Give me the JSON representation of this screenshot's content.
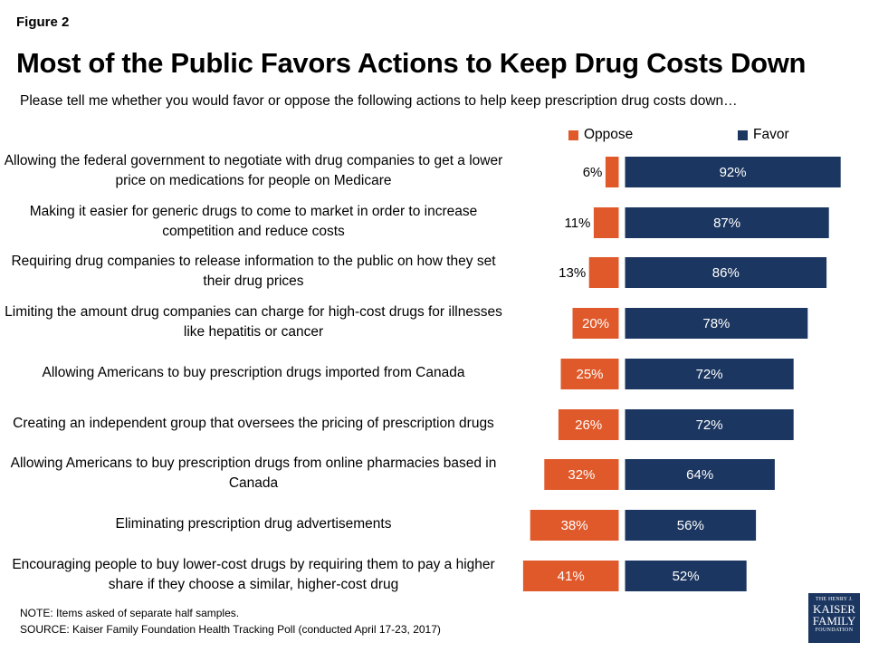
{
  "figure_label": "Figure 2",
  "notes": {
    "note": "NOTE: Items asked of separate half samples.",
    "source": "SOURCE: Kaiser Family Foundation Health Tracking Poll (conducted April 17-23, 2017)"
  },
  "logo": {
    "line1": "THE HENRY J.",
    "line2": "KAISER",
    "line3": "FAMILY",
    "line4": "FOUNDATION"
  },
  "colors": {
    "oppose": "#e0592a",
    "favor": "#1b3660",
    "bar_border": "#ffffff"
  },
  "chart_data": {
    "type": "bar",
    "orientation": "horizontal-diverging",
    "title": "Most of the Public Favors Actions to Keep Drug Costs Down",
    "subtitle": "Please tell me whether you would favor or oppose the following actions to help keep prescription drug costs down…",
    "legend_position": "top-right",
    "categories": [
      "Allowing the federal government to negotiate with drug companies to get a lower price on medications for people on Medicare",
      "Making it easier for generic drugs to come to market in order to increase competition and reduce costs",
      "Requiring drug companies to release information to the public on how they set their drug prices",
      "Limiting the amount drug companies can charge for high-cost drugs for illnesses like hepatitis or cancer",
      "Allowing Americans to buy prescription drugs imported from Canada",
      "Creating an independent group that oversees the pricing of prescription drugs",
      "Allowing Americans to buy prescription drugs from online pharmacies based in Canada",
      "Eliminating prescription drug advertisements",
      "Encouraging people to buy lower-cost drugs by requiring them to pay a higher share if they choose a similar, higher-cost drug"
    ],
    "series": [
      {
        "name": "Oppose",
        "values": [
          6,
          11,
          13,
          20,
          25,
          26,
          32,
          38,
          41
        ],
        "labels": [
          "6%",
          "11%",
          "13%",
          "20%",
          "25%",
          "26%",
          "32%",
          "38%",
          "41%"
        ]
      },
      {
        "name": "Favor",
        "values": [
          92,
          87,
          86,
          78,
          72,
          72,
          64,
          56,
          52
        ],
        "labels": [
          "92%",
          "87%",
          "86%",
          "78%",
          "72%",
          "72%",
          "64%",
          "56%",
          "52%"
        ]
      }
    ],
    "unit": "%",
    "xlim": [
      0,
      100
    ],
    "grid": false
  }
}
